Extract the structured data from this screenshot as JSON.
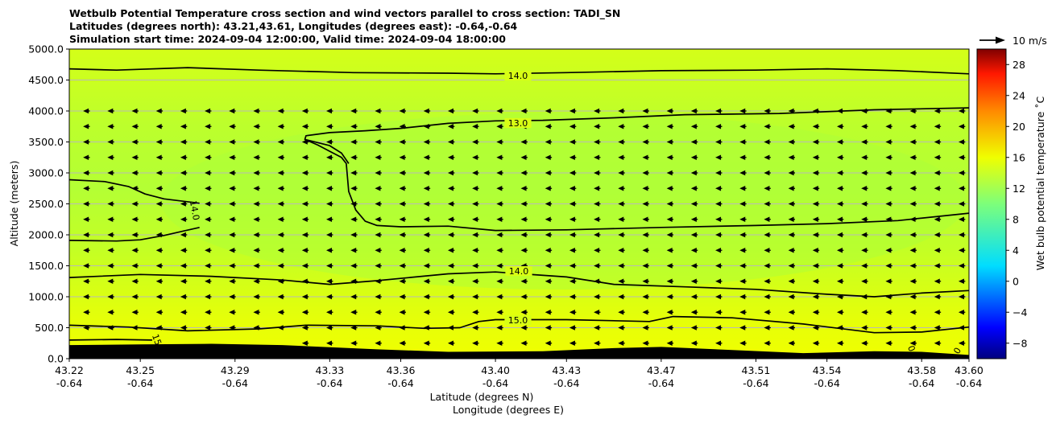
{
  "chart_data": {
    "type": "heatmap",
    "title_lines": [
      "Wetbulb Potential Temperature cross section and wind vectors parallel to cross section: TADI_SN",
      "Latitudes (degrees north): 43.21,43.61, Longitudes (degrees east): -0.64,-0.64",
      "Simulation start time: 2024-09-04 12:00:00, Valid time: 2024-09-04 18:00:00"
    ],
    "ylabel": "Altitude (meters)",
    "xlabel_lat": "Latitude (degrees N)",
    "xlabel_lon": "Longitude (degrees E)",
    "ylim": [
      0,
      5000
    ],
    "xlim": [
      43.22,
      43.6
    ],
    "yticks": [
      "0.0",
      "500.0",
      "1000.0",
      "1500.0",
      "2000.0",
      "2500.0",
      "3000.0",
      "3500.0",
      "4000.0",
      "4500.0",
      "5000.0"
    ],
    "xticks_lat": [
      "43.22",
      "43.25",
      "43.29",
      "43.33",
      "43.36",
      "43.40",
      "43.43",
      "43.47",
      "43.51",
      "43.54",
      "43.58",
      "43.60"
    ],
    "xticks_lon": [
      "-0.64",
      "-0.64",
      "-0.64",
      "-0.64",
      "-0.64",
      "-0.64",
      "-0.64",
      "-0.64",
      "-0.64",
      "-0.64",
      "-0.64",
      "-0.64"
    ],
    "grid": "horizontal",
    "colorbar": {
      "label": "Wet bulb potential temperature ˚C",
      "range": [
        -10,
        30
      ],
      "ticks": [
        "−8",
        "−4",
        "0",
        "4",
        "8",
        "12",
        "16",
        "20",
        "24",
        "28"
      ]
    },
    "quiver_key": "10 m/s",
    "contour_labels": [
      {
        "label": "14.0"
      },
      {
        "label": "13.0"
      },
      {
        "label": "14.0"
      },
      {
        "label": "14.0"
      },
      {
        "label": "15.0"
      },
      {
        "label": "15"
      },
      {
        "label": "0"
      },
      {
        "label": "0"
      }
    ],
    "contours": [
      {
        "level": 14.0,
        "points": [
          [
            43.22,
            4680
          ],
          [
            43.24,
            4660
          ],
          [
            43.27,
            4700
          ],
          [
            43.3,
            4660
          ],
          [
            43.34,
            4620
          ],
          [
            43.38,
            4610
          ],
          [
            43.4,
            4600
          ],
          [
            43.43,
            4620
          ],
          [
            43.47,
            4650
          ],
          [
            43.51,
            4660
          ],
          [
            43.54,
            4680
          ],
          [
            43.57,
            4650
          ],
          [
            43.6,
            4600
          ]
        ]
      },
      {
        "level": 13.0,
        "points": [
          [
            43.6,
            4050
          ],
          [
            43.56,
            4020
          ],
          [
            43.52,
            3960
          ],
          [
            43.48,
            3940
          ],
          [
            43.45,
            3890
          ],
          [
            43.42,
            3850
          ],
          [
            43.4,
            3840
          ],
          [
            43.38,
            3800
          ],
          [
            43.36,
            3720
          ],
          [
            43.345,
            3680
          ],
          [
            43.33,
            3650
          ],
          [
            43.32,
            3600
          ],
          [
            43.3195,
            3540
          ],
          [
            43.325,
            3450
          ],
          [
            43.33,
            3350
          ],
          [
            43.335,
            3250
          ],
          [
            43.337,
            3150
          ],
          [
            43.338,
            2700
          ],
          [
            43.341,
            2400
          ],
          [
            43.345,
            2220
          ],
          [
            43.35,
            2150
          ],
          [
            43.36,
            2130
          ],
          [
            43.38,
            2140
          ],
          [
            43.4,
            2070
          ],
          [
            43.43,
            2080
          ],
          [
            43.47,
            2120
          ],
          [
            43.51,
            2150
          ],
          [
            43.54,
            2180
          ],
          [
            43.57,
            2230
          ],
          [
            43.6,
            2350
          ]
        ]
      },
      {
        "level": 13.0,
        "points": [
          [
            43.3195,
            3540
          ],
          [
            43.33,
            3440
          ],
          [
            43.335,
            3320
          ],
          [
            43.338,
            3150
          ]
        ]
      },
      {
        "level": 14.0,
        "points": [
          [
            43.22,
            2890
          ],
          [
            43.235,
            2860
          ],
          [
            43.245,
            2780
          ],
          [
            43.252,
            2660
          ],
          [
            43.26,
            2580
          ],
          [
            43.275,
            2510
          ]
        ]
      },
      {
        "level": 14.0,
        "points": [
          [
            43.22,
            1910
          ],
          [
            43.24,
            1900
          ],
          [
            43.25,
            1920
          ],
          [
            43.26,
            1990
          ],
          [
            43.268,
            2060
          ],
          [
            43.275,
            2120
          ]
        ]
      },
      {
        "level": 14.0,
        "points": [
          [
            43.22,
            1310
          ],
          [
            43.25,
            1360
          ],
          [
            43.28,
            1330
          ],
          [
            43.31,
            1270
          ],
          [
            43.33,
            1200
          ],
          [
            43.35,
            1260
          ],
          [
            43.38,
            1370
          ],
          [
            43.4,
            1400
          ],
          [
            43.43,
            1320
          ],
          [
            43.45,
            1200
          ],
          [
            43.48,
            1160
          ],
          [
            43.51,
            1120
          ],
          [
            43.54,
            1040
          ],
          [
            43.56,
            1000
          ],
          [
            43.58,
            1060
          ],
          [
            43.6,
            1100
          ]
        ]
      },
      {
        "level": 15.0,
        "points": [
          [
            43.22,
            540
          ],
          [
            43.245,
            510
          ],
          [
            43.27,
            450
          ],
          [
            43.3,
            480
          ],
          [
            43.32,
            540
          ],
          [
            43.35,
            530
          ],
          [
            43.37,
            490
          ],
          [
            43.385,
            500
          ],
          [
            43.393,
            600
          ],
          [
            43.4,
            630
          ],
          [
            43.43,
            630
          ],
          [
            43.465,
            600
          ],
          [
            43.475,
            680
          ],
          [
            43.5,
            660
          ],
          [
            43.53,
            560
          ],
          [
            43.56,
            420
          ],
          [
            43.58,
            430
          ],
          [
            43.6,
            510
          ]
        ]
      },
      {
        "level": 15.0,
        "points": [
          [
            43.22,
            300
          ],
          [
            43.24,
            310
          ],
          [
            43.255,
            300
          ]
        ]
      }
    ],
    "terrain": [
      [
        43.22,
        220
      ],
      [
        43.25,
        230
      ],
      [
        43.28,
        240
      ],
      [
        43.31,
        220
      ],
      [
        43.35,
        150
      ],
      [
        43.38,
        110
      ],
      [
        43.42,
        120
      ],
      [
        43.45,
        170
      ],
      [
        43.47,
        190
      ],
      [
        43.5,
        140
      ],
      [
        43.53,
        90
      ],
      [
        43.56,
        120
      ],
      [
        43.58,
        110
      ],
      [
        43.6,
        60
      ]
    ],
    "wind_u_mps": -4
  }
}
